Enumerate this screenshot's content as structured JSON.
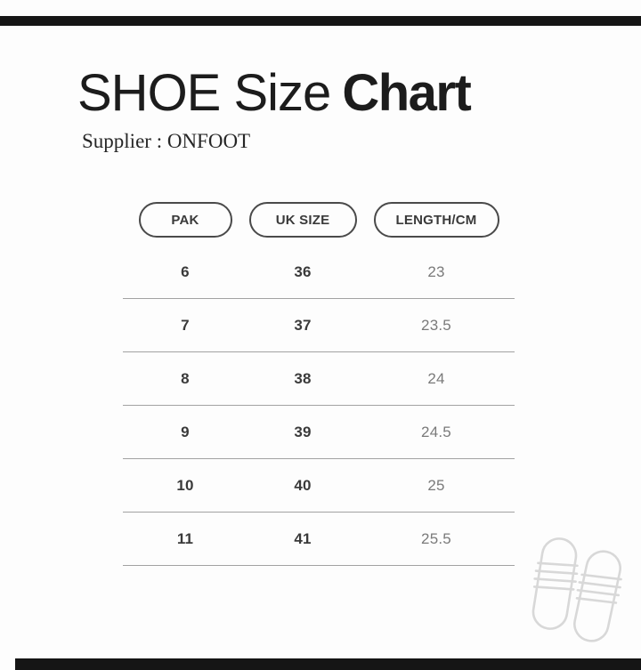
{
  "header": {
    "title_regular": "SHOE Size",
    "title_bold": "Chart",
    "supplier": "Supplier : ONFOOT"
  },
  "chart_data": {
    "type": "table",
    "title": "SHOE Size Chart",
    "supplier": "ONFOOT",
    "columns": [
      "PAK",
      "UK SIZE",
      "LENGTH/CM"
    ],
    "rows": [
      [
        6,
        36,
        23
      ],
      [
        7,
        37,
        23.5
      ],
      [
        8,
        38,
        24
      ],
      [
        9,
        39,
        24.5
      ],
      [
        10,
        40,
        25
      ],
      [
        11,
        41,
        25.5
      ]
    ]
  },
  "icons": {
    "slippers": "slide-sandals-outline"
  },
  "colors": {
    "background": "#fdfdfd",
    "accent_bar": "#151515",
    "title_text": "#1c1c1c",
    "pill_border": "#4a4a4a",
    "cell_text_bold": "#3a3a3a",
    "cell_text_gray": "#7a7a7a",
    "divider": "#a2a2a2",
    "slipper_outline": "#d8d8d8"
  }
}
